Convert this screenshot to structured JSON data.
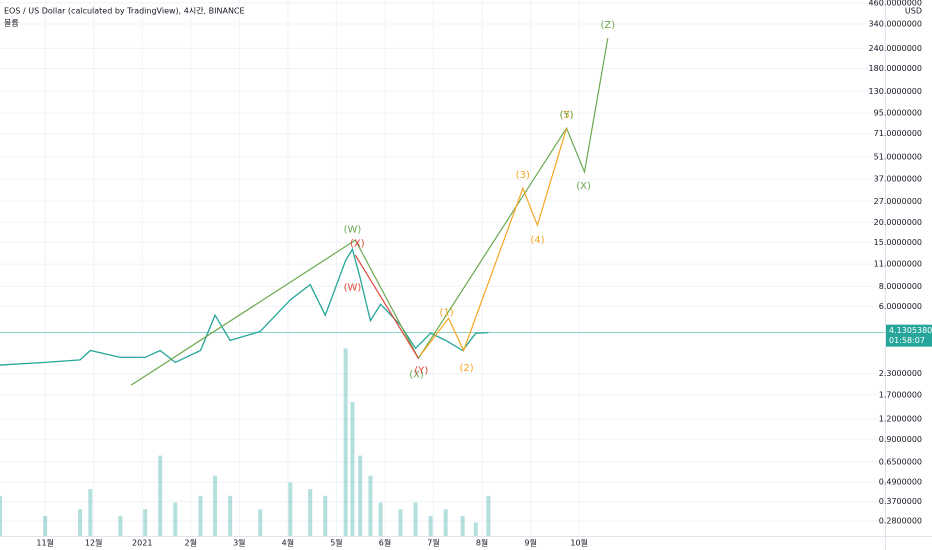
{
  "chart_data": {
    "type": "line",
    "title": "EOS / US Dollar (calculated by TradingView), 4시간, BINANCE",
    "subtitle": "볼륨",
    "y_axis_label": "USD",
    "log_scale": true,
    "grid": true,
    "xlim": [
      10.07,
      28.3
    ],
    "ylim": [
      0.226,
      479
    ],
    "xticks": [
      {
        "value": 11,
        "label": "11월"
      },
      {
        "value": 12,
        "label": "12월"
      },
      {
        "value": 13,
        "label": "2021"
      },
      {
        "value": 14,
        "label": "2월"
      },
      {
        "value": 15,
        "label": "3월"
      },
      {
        "value": 16,
        "label": "4월"
      },
      {
        "value": 17,
        "label": "5월"
      },
      {
        "value": 18,
        "label": "6월"
      },
      {
        "value": 19,
        "label": "7월"
      },
      {
        "value": 20,
        "label": "8월"
      },
      {
        "value": 21,
        "label": "9월"
      },
      {
        "value": 22,
        "label": "10월"
      }
    ],
    "yticks": [
      {
        "value": 460,
        "label": "460.0000000"
      },
      {
        "value": 340,
        "label": "340.0000000"
      },
      {
        "value": 240,
        "label": "240.0000000"
      },
      {
        "value": 180,
        "label": "180.0000000"
      },
      {
        "value": 130,
        "label": "130.0000000"
      },
      {
        "value": 95,
        "label": "95.0000000"
      },
      {
        "value": 71,
        "label": "71.0000000"
      },
      {
        "value": 51,
        "label": "51.0000000"
      },
      {
        "value": 37,
        "label": "37.0000000"
      },
      {
        "value": 27,
        "label": "27.0000000"
      },
      {
        "value": 20,
        "label": "20.0000000"
      },
      {
        "value": 15,
        "label": "15.0000000"
      },
      {
        "value": 11,
        "label": "11.0000000"
      },
      {
        "value": 8,
        "label": "8.0000000"
      },
      {
        "value": 6,
        "label": "6.0000000"
      },
      {
        "value": 2.3,
        "label": "2.3000000"
      },
      {
        "value": 1.7,
        "label": "1.7000000"
      },
      {
        "value": 1.2,
        "label": "1.2000000"
      },
      {
        "value": 0.9,
        "label": "0.9000000"
      },
      {
        "value": 0.65,
        "label": "0.6500000"
      },
      {
        "value": 0.49,
        "label": "0.4900000"
      },
      {
        "value": 0.37,
        "label": "0.3700000"
      },
      {
        "value": 0.28,
        "label": "0.2800000"
      }
    ],
    "x": [
      10.07,
      11,
      11.72,
      11.93,
      12.55,
      13.06,
      13.37,
      13.68,
      14.2,
      14.5,
      14.81,
      15.43,
      16.05,
      16.46,
      16.77,
      17.19,
      17.33,
      17.49,
      17.7,
      17.91,
      18.32,
      18.63,
      18.94,
      19.25,
      19.6,
      19.87,
      20.13
    ],
    "series": [
      {
        "color": "#26a69a",
        "values": [
          2.6,
          2.7,
          2.8,
          3.2,
          2.9,
          2.9,
          3.2,
          2.7,
          3.2,
          5.3,
          3.7,
          4.2,
          6.6,
          8.2,
          5.3,
          11.6,
          13.6,
          9,
          4.9,
          6.2,
          4.6,
          3.3,
          4.1,
          3.7,
          3.2,
          4.1,
          4.13
        ]
      }
    ],
    "volume": {
      "color": "#26a69a",
      "ylim": [
        0,
        400
      ],
      "values": [
        30,
        15,
        20,
        35,
        15,
        20,
        60,
        25,
        30,
        45,
        30,
        20,
        40,
        35,
        30,
        140,
        100,
        60,
        45,
        25,
        20,
        25,
        15,
        20,
        15,
        10,
        30
      ]
    },
    "last_price": {
      "value": 4.130538,
      "label": "4.1305380",
      "countdown": "01:58:07",
      "color": "#26a69a"
    },
    "wave_lines": [
      {
        "color": "#6aa84f",
        "x": [
          12.77,
          17.39,
          18.69,
          21.74,
          22.11,
          22.59
        ],
        "values": [
          1.95,
          15.5,
          2.86,
          76.7,
          41,
          278
        ]
      },
      {
        "color": "#f6a623",
        "x": [
          18.73,
          19.31,
          19.62,
          20.84,
          21.14,
          21.74
        ],
        "values": [
          2.99,
          5.07,
          3.2,
          32.5,
          19.2,
          76.7
        ]
      },
      {
        "color": "#e0453a",
        "x": [
          17.39,
          18.69
        ],
        "values": [
          12.5,
          2.86
        ]
      }
    ],
    "annotations": [
      {
        "text": "(W)",
        "color": "#6aa84f",
        "x": 17.33,
        "y": 18.1
      },
      {
        "text": "(X)",
        "color": "#e0453a",
        "x": 17.43,
        "y": 14.8
      },
      {
        "text": "(W)",
        "color": "#e0453a",
        "x": 17.33,
        "y": 7.9
      },
      {
        "text": "(X)",
        "color": "#6aa84f",
        "x": 18.65,
        "y": 2.27
      },
      {
        "text": "(Y)",
        "color": "#e0453a",
        "x": 18.75,
        "y": 2.4
      },
      {
        "text": "(1)",
        "color": "#f6a623",
        "x": 19.27,
        "y": 5.5
      },
      {
        "text": "(2)",
        "color": "#f6a623",
        "x": 19.68,
        "y": 2.5
      },
      {
        "text": "(3)",
        "color": "#f6a623",
        "x": 20.84,
        "y": 39.2
      },
      {
        "text": "(4)",
        "color": "#f6a623",
        "x": 21.14,
        "y": 15.5
      },
      {
        "text": "(5)",
        "color": "#f6a623",
        "x": 21.74,
        "y": 92.5
      },
      {
        "text": "(Y)",
        "color": "#6aa84f",
        "x": 21.74,
        "y": 92.5
      },
      {
        "text": "(X)",
        "color": "#6aa84f",
        "x": 22.09,
        "y": 33.5
      },
      {
        "text": "(Z)",
        "color": "#6aa84f",
        "x": 22.59,
        "y": 335
      }
    ]
  }
}
